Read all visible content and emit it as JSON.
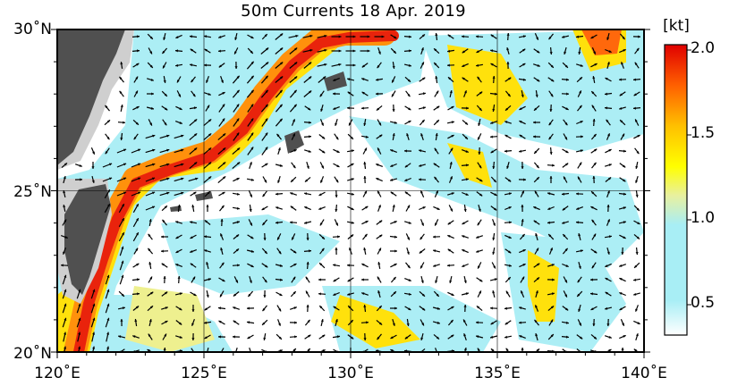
{
  "title": "50m Currents  18 Apr. 2019",
  "map": {
    "lon_range": [
      120,
      140
    ],
    "lat_range": [
      20,
      30
    ],
    "lon_labels": [
      "120˚E",
      "125˚E",
      "130˚E",
      "135˚E",
      "140˚E"
    ],
    "lat_labels": [
      "30˚N",
      "25˚N",
      "20˚N"
    ],
    "variable": "ocean current speed at 50 m depth",
    "arrows": "current direction vectors",
    "land_color": "#505050",
    "shelf_color": "#cfcfcf"
  },
  "colorbar": {
    "unit": "[kt]",
    "ticks": [
      "2.0",
      "1.5",
      "1.0",
      "0.5"
    ],
    "range": [
      0.3,
      2.0
    ],
    "colors": [
      "#ffffff",
      "#a8eef5",
      "#e8f0a0",
      "#ffff00",
      "#ffa500",
      "#ff4500",
      "#e00000"
    ]
  }
}
